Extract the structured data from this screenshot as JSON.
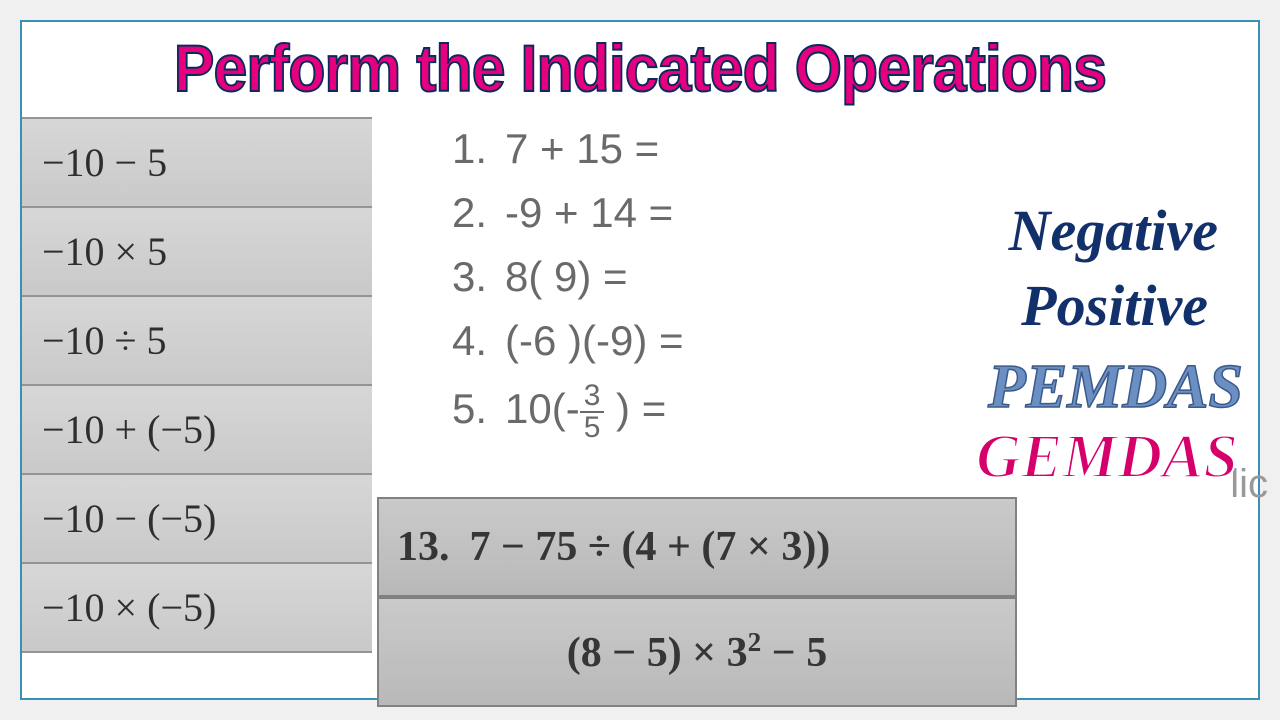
{
  "title": "Perform the Indicated Operations",
  "title_color": "#e6007e",
  "title_stroke": "#0a2a5c",
  "left_column": [
    "−10 − 5",
    "−10 × 5",
    "−10 ÷ 5",
    "−10 + (−5)",
    "−10 − (−5)",
    "−10 × (−5)"
  ],
  "numbered_list": [
    {
      "n": "1.",
      "expr": "7 + 15 ="
    },
    {
      "n": "2.",
      "expr": "-9 + 14 ="
    },
    {
      "n": "3.",
      "expr": "8( 9) ="
    },
    {
      "n": "4.",
      "expr": "(-6 )(-9) ="
    },
    {
      "n": "5.",
      "expr_prefix": "10(-",
      "frac_top": "3",
      "frac_bot": "5",
      "expr_suffix": " ) ="
    }
  ],
  "labels": {
    "negative": "Negative",
    "positive": "Positive",
    "pemdas": "PEMDAS",
    "gemdas": "GEMDAS"
  },
  "bottom": {
    "q13_num": "13.",
    "q13_expr": "7 − 75 ÷ (4 + (7 × 3))",
    "q14_expr_a": "(8 − 5) × 3",
    "q14_sup": "2",
    "q14_expr_b": " − 5"
  },
  "ghost": "lic",
  "colors": {
    "bg": "#f0f0f0",
    "border": "#3a8fb7",
    "dark_navy": "#12306a",
    "blue_label": "#6b8fc2",
    "pink_label": "#d6006c",
    "grey_text": "#6a6a6a"
  },
  "fonts": {
    "title_family": "Arial Black",
    "title_size_pt": 50,
    "label_family": "Georgia",
    "label_size_pt": 44,
    "math_family": "Cambria Math",
    "list_size_pt": 32
  }
}
